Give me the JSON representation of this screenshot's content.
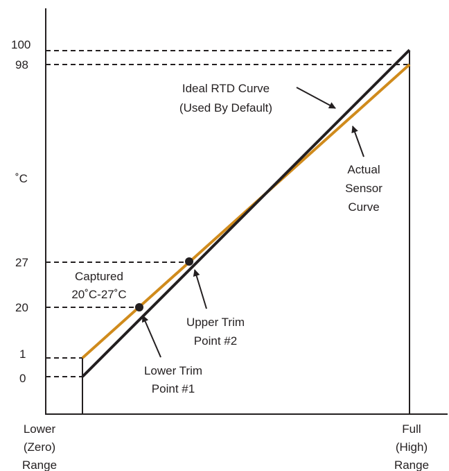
{
  "y_axis": {
    "unit_label": "˚C",
    "ticks": [
      "100",
      "98",
      "27",
      "20",
      "1",
      "0"
    ]
  },
  "x_axis": {
    "left_label": [
      "Lower",
      "(Zero)",
      "Range"
    ],
    "right_label": [
      "Full",
      "(High)",
      "Range"
    ]
  },
  "curves": {
    "ideal": {
      "label": [
        "Ideal RTD Curve",
        "(Used By Default)"
      ],
      "color": "#231f20"
    },
    "actual": {
      "label": [
        "Actual",
        "Sensor",
        "Curve"
      ],
      "color": "#d08b1c"
    }
  },
  "annotations": {
    "captured": [
      "Captured",
      "20˚C-27˚C"
    ],
    "upper_trim": [
      "Upper Trim",
      "Point #2"
    ],
    "lower_trim": [
      "Lower Trim",
      "Point #1"
    ]
  }
}
